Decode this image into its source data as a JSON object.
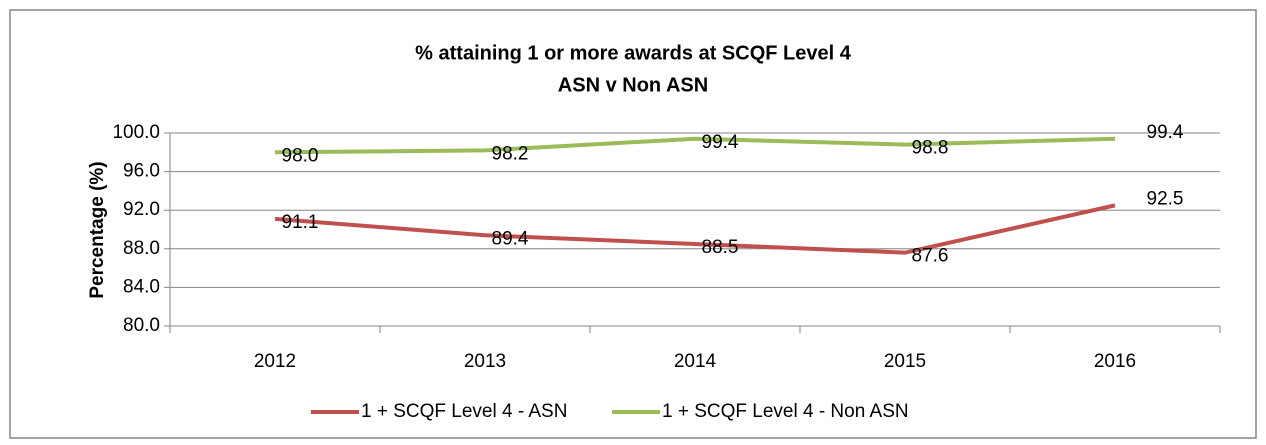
{
  "chart_data": {
    "type": "line",
    "title": "% attaining 1 or more awards at SCQF Level 4",
    "subtitle": "ASN v Non ASN",
    "y_label": "Percentage (%)",
    "categories": [
      "2012",
      "2013",
      "2014",
      "2015",
      "2016"
    ],
    "series": [
      {
        "name": "1 + SCQF Level 4 - ASN",
        "color": "#c0504d",
        "values": [
          91.1,
          89.4,
          88.5,
          87.6,
          92.5
        ],
        "value_labels": [
          "91.1",
          "89.4",
          "88.5",
          "87.6",
          "92.5"
        ]
      },
      {
        "name": "1 + SCQF Level 4 - Non ASN",
        "color": "#9bbb59",
        "values": [
          98,
          98.2,
          99.4,
          98.8,
          99.4
        ],
        "value_labels": [
          "98.0",
          "98.2",
          "99.4",
          "98.8",
          "99.4"
        ]
      }
    ],
    "ylim": [
      80,
      100
    ],
    "yticks": [
      {
        "value": 80,
        "label": "80.0"
      },
      {
        "value": 84,
        "label": "84.0"
      },
      {
        "value": 88,
        "label": "88.0"
      },
      {
        "value": 92,
        "label": "92.0"
      },
      {
        "value": 96,
        "label": "96.0"
      },
      {
        "value": 100,
        "label": "100.0"
      }
    ],
    "grid": true,
    "legend": "bottom"
  }
}
